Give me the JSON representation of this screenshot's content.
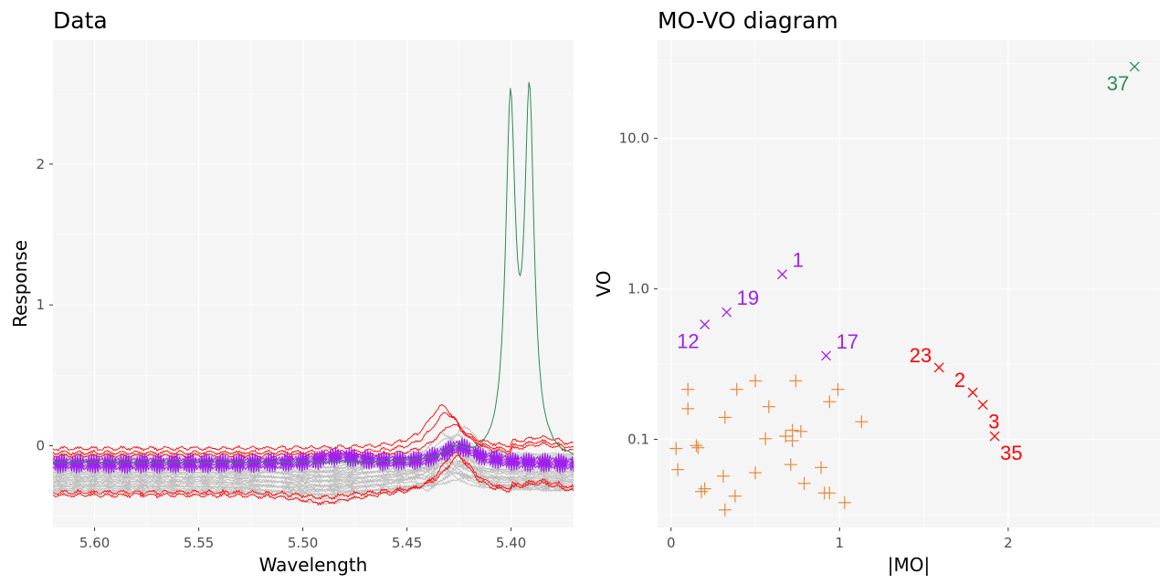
{
  "colors": {
    "panel_bg": "#f5f5f5",
    "grid": "#ffffff",
    "background_spectra": "#bebebe",
    "purple": "#a020f0",
    "red": "#ff0000",
    "green": "#2e8b57",
    "orange": "#e8893a"
  },
  "chart_data": [
    {
      "type": "line",
      "title": "Data",
      "xlabel": "Wavelength",
      "ylabel": "Response",
      "x_reversed": true,
      "xlim": [
        5.62,
        5.37
      ],
      "ylim": [
        -0.58,
        2.88
      ],
      "x_ticks": [
        5.6,
        5.55,
        5.5,
        5.45,
        5.4
      ],
      "x_tick_labels": [
        "5.60",
        "5.55",
        "5.50",
        "5.45",
        "5.40"
      ],
      "y_ticks": [
        0,
        1,
        2
      ],
      "y_tick_labels": [
        "0",
        "1",
        "2"
      ],
      "grid": true,
      "legend": "none",
      "series": [
        {
          "group": "grey",
          "color": "#bebebe",
          "count": 25,
          "description_values": {
            "baseline": -0.13,
            "peak_x": 5.427,
            "peak_y": 0.12
          }
        },
        {
          "group": "purple",
          "color": "#a020f0",
          "count": 4,
          "baseline": -0.12,
          "peak_x": 5.425,
          "peak_y": 0.05
        },
        {
          "group": "red",
          "color": "#ff0000",
          "count": 5,
          "baseline_low": -0.36,
          "baseline_high": -0.02,
          "peak_x": 5.432,
          "peak_y": 0.33
        },
        {
          "group": "green",
          "color": "#2e8b57",
          "count": 1,
          "baseline": -0.12,
          "peak_x": [
            5.4,
            5.391
          ],
          "peak_y": [
            2.67,
            2.72
          ],
          "dip_y": 1.17
        }
      ]
    },
    {
      "type": "scatter",
      "title": "MO-VO diagram",
      "xlabel": "|MO|",
      "ylabel": "VO",
      "y_scale": "log10",
      "xlim": [
        -0.08,
        2.9
      ],
      "ylim": [
        0.026,
        45
      ],
      "x_ticks": [
        0,
        1,
        2
      ],
      "x_tick_labels": [
        "0",
        "1",
        "2"
      ],
      "y_ticks": [
        0.1,
        1.0,
        10.0
      ],
      "y_tick_labels": [
        "0.1",
        "1.0",
        "10.0"
      ],
      "grid": true,
      "legend": "none",
      "labeled_points": [
        {
          "label": "1",
          "x": 0.66,
          "y": 1.25,
          "color": "#a020f0",
          "label_pos": "upper-right"
        },
        {
          "label": "19",
          "x": 0.33,
          "y": 0.7,
          "color": "#a020f0",
          "label_pos": "upper-right"
        },
        {
          "label": "12",
          "x": 0.2,
          "y": 0.58,
          "color": "#a020f0",
          "label_pos": "lower-left"
        },
        {
          "label": "17",
          "x": 0.92,
          "y": 0.36,
          "color": "#a020f0",
          "label_pos": "upper-right"
        },
        {
          "label": "23",
          "x": 1.59,
          "y": 0.3,
          "color": "#ff0000",
          "label_pos": "upper-left"
        },
        {
          "label": "2",
          "x": 1.79,
          "y": 0.205,
          "color": "#ff0000",
          "label_pos": "upper-left"
        },
        {
          "label": "3",
          "x": 1.85,
          "y": 0.17,
          "color": "#ff0000",
          "label_pos": "lower-right"
        },
        {
          "label": "35",
          "x": 1.92,
          "y": 0.105,
          "color": "#ff0000",
          "label_pos": "lower-right"
        },
        {
          "label": "37",
          "x": 2.75,
          "y": 30.0,
          "color": "#2e8b57",
          "label_pos": "lower-left"
        }
      ],
      "plus_points": [
        [
          0.03,
          0.087
        ],
        [
          0.04,
          0.063
        ],
        [
          0.1,
          0.215
        ],
        [
          0.1,
          0.16
        ],
        [
          0.15,
          0.091
        ],
        [
          0.16,
          0.088
        ],
        [
          0.18,
          0.045
        ],
        [
          0.2,
          0.047
        ],
        [
          0.31,
          0.057
        ],
        [
          0.32,
          0.14
        ],
        [
          0.32,
          0.034
        ],
        [
          0.38,
          0.042
        ],
        [
          0.39,
          0.215
        ],
        [
          0.5,
          0.06
        ],
        [
          0.5,
          0.245
        ],
        [
          0.56,
          0.101
        ],
        [
          0.58,
          0.165
        ],
        [
          0.68,
          0.105
        ],
        [
          0.71,
          0.068
        ],
        [
          0.72,
          0.115
        ],
        [
          0.72,
          0.098
        ],
        [
          0.74,
          0.245
        ],
        [
          0.77,
          0.113
        ],
        [
          0.79,
          0.051
        ],
        [
          0.89,
          0.065
        ],
        [
          0.91,
          0.044
        ],
        [
          0.94,
          0.044
        ],
        [
          0.94,
          0.178
        ],
        [
          0.99,
          0.215
        ],
        [
          1.03,
          0.038
        ],
        [
          1.13,
          0.131
        ]
      ]
    }
  ]
}
